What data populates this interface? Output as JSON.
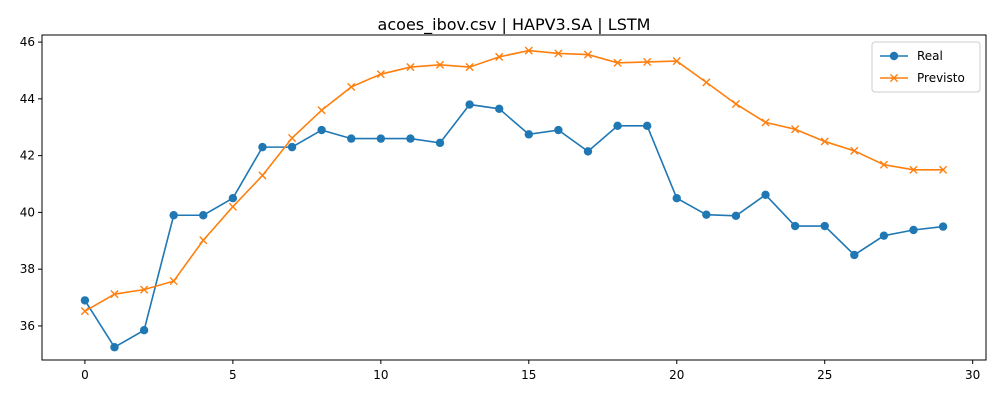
{
  "chart_data": {
    "type": "line",
    "title": "acoes_ibov.csv | HAPV3.SA | LSTM",
    "xlabel": "",
    "ylabel": "",
    "xlim": [
      -1.45,
      30.45
    ],
    "ylim": [
      34.8,
      46.25
    ],
    "xticks": [
      0,
      5,
      10,
      15,
      20,
      25,
      30
    ],
    "yticks": [
      36,
      38,
      40,
      42,
      44,
      46
    ],
    "grid": false,
    "legend_position": "top-right",
    "series": [
      {
        "name": "Real",
        "color": "#1f77b4",
        "marker": "circle",
        "x": [
          0,
          1,
          2,
          3,
          4,
          5,
          6,
          7,
          8,
          9,
          10,
          11,
          12,
          13,
          14,
          15,
          16,
          17,
          18,
          19,
          20,
          21,
          22,
          23,
          24,
          25,
          26,
          27,
          28,
          29
        ],
        "values": [
          36.9,
          35.25,
          35.85,
          39.9,
          39.9,
          40.5,
          42.3,
          42.3,
          42.9,
          42.6,
          42.6,
          42.6,
          42.45,
          43.8,
          43.65,
          42.75,
          42.9,
          42.15,
          43.05,
          43.05,
          40.5,
          39.92,
          39.88,
          40.62,
          39.52,
          39.52,
          38.5,
          39.18,
          39.38,
          39.5
        ]
      },
      {
        "name": "Previsto",
        "color": "#ff7f0e",
        "marker": "x",
        "x": [
          0,
          1,
          2,
          3,
          4,
          5,
          6,
          7,
          8,
          9,
          10,
          11,
          12,
          13,
          14,
          15,
          16,
          17,
          18,
          19,
          20,
          21,
          22,
          23,
          24,
          25,
          26,
          27,
          28,
          29
        ],
        "values": [
          36.52,
          37.12,
          37.28,
          37.58,
          39.02,
          40.2,
          41.3,
          42.62,
          43.6,
          44.42,
          44.87,
          45.12,
          45.2,
          45.12,
          45.48,
          45.7,
          45.6,
          45.56,
          45.27,
          45.3,
          45.33,
          44.58,
          43.82,
          43.17,
          42.93,
          42.5,
          42.17,
          41.68,
          41.5,
          41.5
        ]
      }
    ]
  }
}
